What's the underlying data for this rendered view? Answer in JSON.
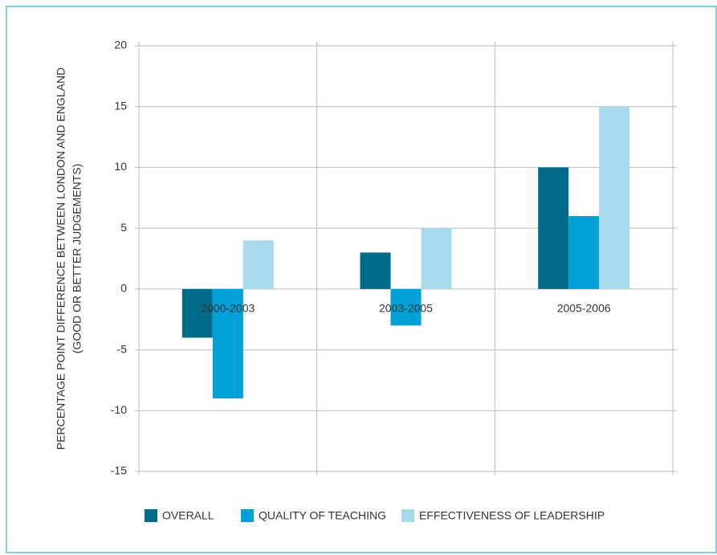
{
  "chart_data": {
    "type": "bar",
    "ylabel": [
      "PERCENTAGE POINT DIFFERENCE BETWEEN LONDON AND ENGLAND",
      "(GOOD OR BETTER JUDGEMENTS)"
    ],
    "categories": [
      "2000-2003",
      "2003-2005",
      "2005-2006"
    ],
    "series": [
      {
        "name": "OVERALL",
        "color": "#006c8a",
        "values": [
          -4,
          3,
          10
        ]
      },
      {
        "name": "QUALITY OF TEACHING",
        "color": "#00a1d8",
        "values": [
          -9,
          -3,
          6
        ]
      },
      {
        "name": "EFFECTIVENESS OF LEADERSHIP",
        "color": "#a9d9ec",
        "values": [
          4,
          5,
          15
        ]
      }
    ],
    "ylim": [
      -15,
      20
    ],
    "yticks": [
      -15,
      -10,
      -5,
      0,
      5,
      10,
      15,
      20
    ],
    "grid": true,
    "legend": "bottom"
  }
}
